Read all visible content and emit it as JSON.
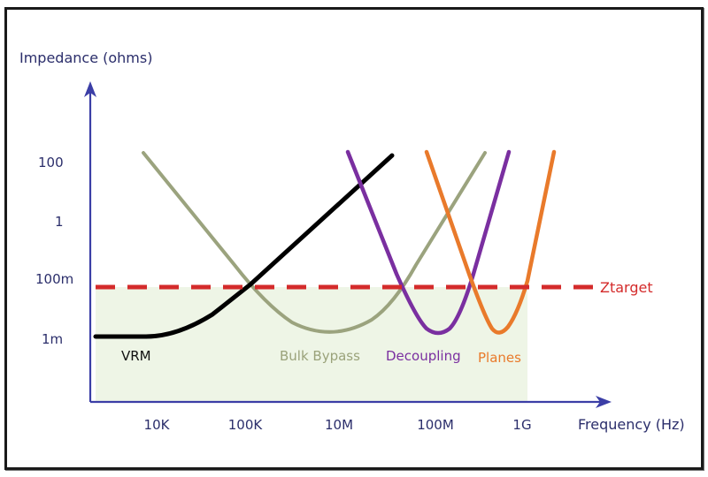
{
  "chart_data": {
    "type": "line",
    "title": "",
    "ylabel": "Impedance (ohms)",
    "xlabel": "Frequency (Hz)",
    "x_ticks": [
      "10K",
      "100K",
      "10M",
      "100M",
      "1G"
    ],
    "y_ticks": [
      "100",
      "1",
      "100m",
      "1m"
    ],
    "threshold": {
      "name": "Ztarget",
      "color": "#d42b2b"
    },
    "series": [
      {
        "name": "VRM",
        "color": "#000000",
        "label_color": "#111111"
      },
      {
        "name": "Bulk Bypass",
        "color": "#9ba37e",
        "label_color": "#9aa27a"
      },
      {
        "name": "Decoupling",
        "color": "#7a2fa0",
        "label_color": "#7a2fa0"
      },
      {
        "name": "Planes",
        "color": "#e97a2b",
        "label_color": "#e97a2b"
      }
    ],
    "axis_color": "#3b3ea6",
    "label_color": "#2b2e6b",
    "fill_color": "#eef5e6"
  }
}
